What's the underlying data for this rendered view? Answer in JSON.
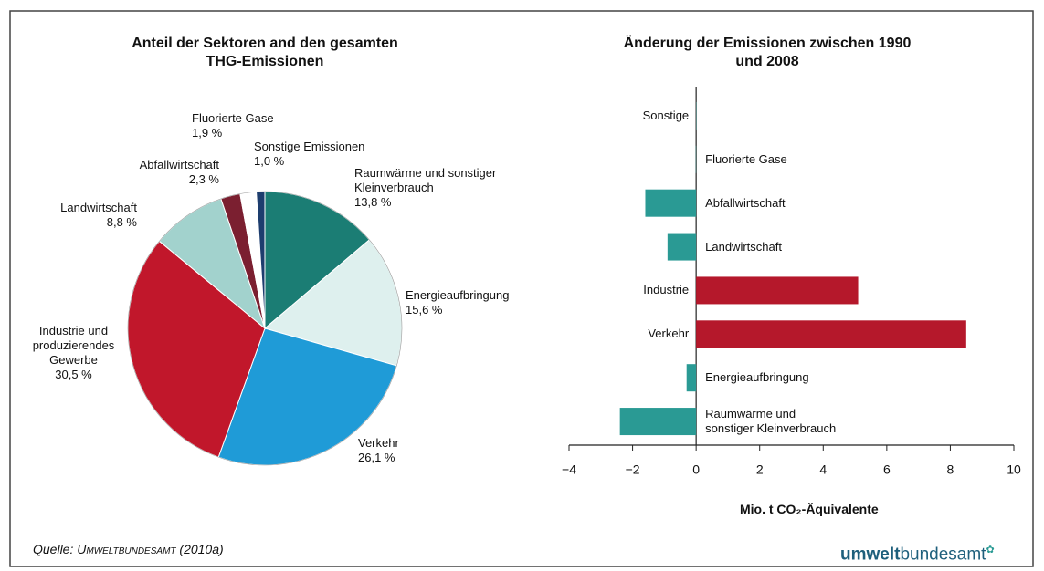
{
  "chart_data": [
    {
      "type": "pie",
      "title": "Anteil der Sektoren and den gesamten\nTHG-Emissionen",
      "categories": [
        "Raumwärme und sonstiger\nKleinverbrauch",
        "Energieaufbringung",
        "Verkehr",
        "Industrie und\nproduzierendes\nGewerbe",
        "Landwirtschaft",
        "Abfallwirtschaft",
        "Fluorierte Gase",
        "Sonstige Emissionen"
      ],
      "values": [
        13.8,
        15.6,
        26.1,
        30.5,
        8.8,
        2.3,
        1.9,
        1.0
      ],
      "value_labels": [
        "13,8 %",
        "15,6 %",
        "26,1 %",
        "30,5 %",
        "8,8 %",
        "2,3 %",
        "1,9 %",
        "1,0 %"
      ],
      "colors": [
        "#1b7d74",
        "#def0ee",
        "#1f9bd7",
        "#c1172b",
        "#a2d2cd",
        "#7b1f30",
        "#ffffff",
        "#1d3d6e"
      ]
    },
    {
      "type": "hbar",
      "title": "Änderung der Emissionen zwischen 1990\nund 2008",
      "categories": [
        "Sonstige",
        "Fluorierte Gase",
        "Abfallwirtschaft",
        "Landwirtschaft",
        "Industrie",
        "Verkehr",
        "Energieaufbringung",
        "Raumwärme und\nsonstiger Kleinverbrauch"
      ],
      "values": [
        0.01,
        -0.01,
        -1.6,
        -0.9,
        5.1,
        8.5,
        -0.3,
        -2.4
      ],
      "colors": [
        "#2a9a94",
        "#2a9a94",
        "#2a9a94",
        "#2a9a94",
        "#b5182b",
        "#b5182b",
        "#2a9a94",
        "#2a9a94"
      ],
      "x_label": "Mio. t CO₂-Äquivalente",
      "xlim": [
        -4,
        10
      ],
      "xticks": [
        {
          "value": -4,
          "label": "−4"
        },
        {
          "value": -2,
          "label": "−2"
        },
        0,
        2,
        4,
        6,
        8,
        10
      ]
    }
  ],
  "source": {
    "prefix": "Quelle:",
    "name": "Umweltbundesamt",
    "year": "(2010a)"
  },
  "logo": {
    "bold": "umwelt",
    "rest": "bundesamt"
  }
}
